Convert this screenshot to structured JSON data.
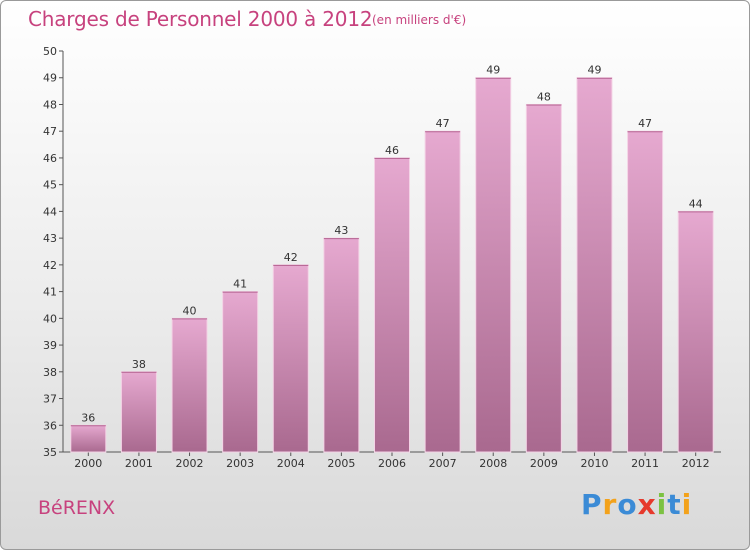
{
  "header": {
    "title": "Charges de Personnel 2000 à 2012",
    "subtitle": "(en milliers d'€)"
  },
  "footer": {
    "commune": "BéRENX",
    "logo": {
      "text": "Proxiti",
      "letters": [
        {
          "ch": "P",
          "color": "#3b8bd6"
        },
        {
          "ch": "r",
          "color": "#f3a21b"
        },
        {
          "ch": "o",
          "color": "#3b8bd6"
        },
        {
          "ch": "x",
          "color": "#e6392c"
        },
        {
          "ch": "i",
          "color": "#7cc242"
        },
        {
          "ch": "t",
          "color": "#3b8bd6"
        },
        {
          "ch": "i",
          "color": "#f3a21b"
        }
      ]
    }
  },
  "colors": {
    "accent": "#c7427e",
    "bar_top": "#e6a9d0",
    "bar_bottom": "#a9698f",
    "axis": "#555555"
  },
  "chart_data": {
    "type": "bar",
    "categories": [
      "2000",
      "2001",
      "2002",
      "2003",
      "2004",
      "2005",
      "2006",
      "2007",
      "2008",
      "2009",
      "2010",
      "2011",
      "2012"
    ],
    "values": [
      36,
      38,
      40,
      41,
      42,
      43,
      46,
      47,
      49,
      48,
      49,
      47,
      44
    ],
    "ylim": [
      35,
      50
    ],
    "yticks": [
      35,
      36,
      37,
      38,
      39,
      40,
      41,
      42,
      43,
      44,
      45,
      46,
      47,
      48,
      49,
      50
    ],
    "grid": false,
    "legend": "none"
  }
}
